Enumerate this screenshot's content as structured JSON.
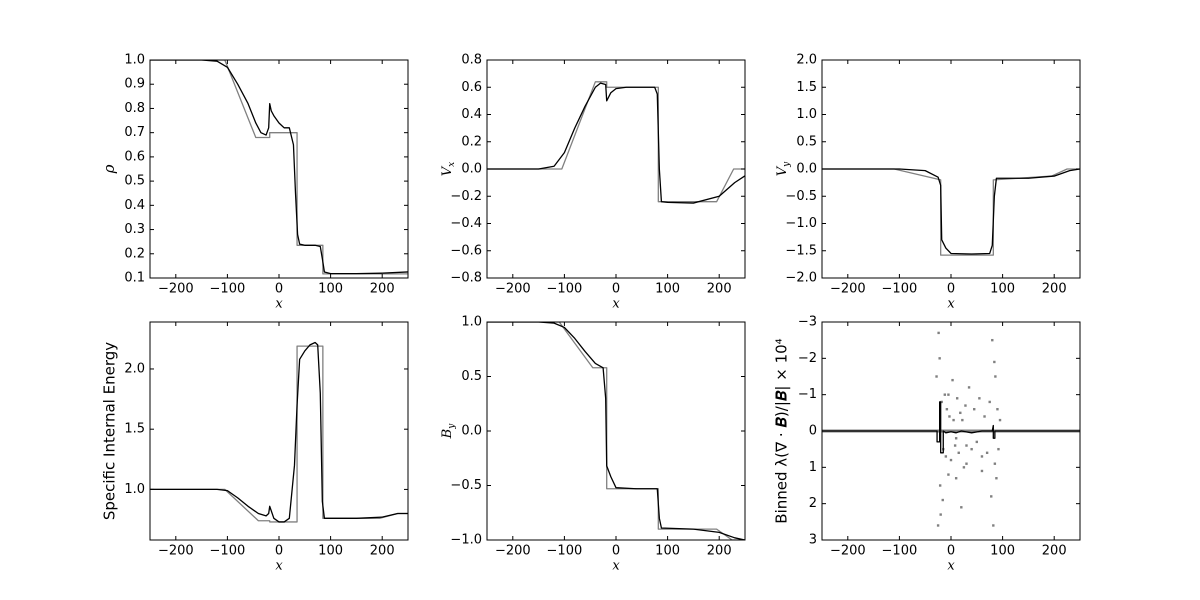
{
  "chart_data": [
    {
      "type": "line",
      "xlabel": "x",
      "ylabel": "ρ",
      "xlim": [
        -250,
        250
      ],
      "xticks": [
        {
          "value": -200,
          "label": "−200"
        },
        {
          "value": -100,
          "label": "−100"
        },
        0,
        100,
        200
      ],
      "ylim": [
        0.1,
        1.0
      ],
      "yticks": [
        0.1,
        0.2,
        0.3,
        0.4,
        0.5,
        0.6,
        0.7,
        0.8,
        0.9,
        {
          "value": 1.0,
          "label": "1.0"
        }
      ],
      "series": [
        {
          "type": "line",
          "color": "#808080",
          "x": [
            -250,
            -105,
            -45,
            -18,
            -18,
            35,
            35,
            85,
            85,
            250
          ],
          "values": [
            1,
            1,
            0.68,
            0.68,
            0.7,
            0.7,
            0.235,
            0.235,
            0.117,
            0.117
          ]
        },
        {
          "type": "line",
          "color": "#000000",
          "x": [
            -250,
            -150,
            -120,
            -100,
            -80,
            -60,
            -45,
            -35,
            -25,
            -20,
            -18,
            -15,
            -10,
            0,
            10,
            20,
            28,
            32,
            36,
            40,
            50,
            70,
            80,
            84,
            88,
            100,
            150,
            200,
            250
          ],
          "values": [
            1.0,
            1.0,
            0.995,
            0.97,
            0.9,
            0.82,
            0.74,
            0.7,
            0.69,
            0.72,
            0.82,
            0.79,
            0.77,
            0.74,
            0.72,
            0.72,
            0.65,
            0.45,
            0.28,
            0.24,
            0.235,
            0.235,
            0.23,
            0.18,
            0.125,
            0.118,
            0.118,
            0.12,
            0.125
          ]
        }
      ]
    },
    {
      "type": "line",
      "xlabel": "x",
      "ylabel": "V",
      "ylabel_sub": "x",
      "xlim": [
        -250,
        250
      ],
      "xticks": [
        {
          "value": -200,
          "label": "−200"
        },
        {
          "value": -100,
          "label": "−100"
        },
        0,
        100,
        200
      ],
      "ylim": [
        -0.8,
        0.8
      ],
      "yticks": [
        {
          "value": -0.8,
          "label": "−0.8"
        },
        {
          "value": -0.6,
          "label": "−0.6"
        },
        {
          "value": -0.4,
          "label": "−0.4"
        },
        {
          "value": -0.2,
          "label": "−0.2"
        },
        {
          "value": 0,
          "label": "0.0"
        },
        0.2,
        0.4,
        0.6,
        0.8
      ],
      "series": [
        {
          "type": "line",
          "color": "#808080",
          "x": [
            -250,
            -105,
            -40,
            -18,
            -18,
            82,
            82,
            195,
            228,
            250
          ],
          "values": [
            0,
            0,
            0.64,
            0.64,
            0.6,
            0.6,
            -0.24,
            -0.24,
            0,
            0
          ]
        },
        {
          "type": "line",
          "color": "#000000",
          "x": [
            -250,
            -150,
            -120,
            -100,
            -80,
            -60,
            -40,
            -30,
            -20,
            -18,
            -10,
            0,
            20,
            40,
            60,
            75,
            80,
            84,
            88,
            100,
            150,
            200,
            230,
            250
          ],
          "values": [
            0,
            0,
            0.02,
            0.12,
            0.3,
            0.46,
            0.6,
            0.63,
            0.62,
            0.5,
            0.56,
            0.59,
            0.6,
            0.6,
            0.6,
            0.6,
            0.55,
            0.0,
            -0.24,
            -0.245,
            -0.25,
            -0.2,
            -0.1,
            -0.05
          ]
        }
      ]
    },
    {
      "type": "line",
      "xlabel": "x",
      "ylabel": "V",
      "ylabel_sub": "y",
      "xlim": [
        -250,
        250
      ],
      "xticks": [
        {
          "value": -200,
          "label": "−200"
        },
        {
          "value": -100,
          "label": "−100"
        },
        0,
        100,
        200
      ],
      "ylim": [
        -2,
        2
      ],
      "yticks": [
        {
          "value": -2,
          "label": "−2.0"
        },
        {
          "value": -1.5,
          "label": "−1.5"
        },
        {
          "value": -1,
          "label": "−1.0"
        },
        {
          "value": -0.5,
          "label": "−0.5"
        },
        {
          "value": 0,
          "label": "0.0"
        },
        0.5,
        {
          "value": 1,
          "label": "1.0"
        },
        1.5,
        {
          "value": 2,
          "label": "2.0"
        }
      ],
      "series": [
        {
          "type": "line",
          "color": "#808080",
          "x": [
            -250,
            -110,
            -20,
            -20,
            82,
            82,
            195,
            225,
            250
          ],
          "values": [
            0,
            0,
            -0.2,
            -1.58,
            -1.58,
            -0.2,
            -0.13,
            0,
            0
          ]
        },
        {
          "type": "line",
          "color": "#000000",
          "x": [
            -250,
            -100,
            -50,
            -25,
            -20,
            -18,
            -10,
            0,
            40,
            75,
            80,
            84,
            88,
            150,
            200,
            230,
            250
          ],
          "values": [
            0,
            0,
            -0.03,
            -0.15,
            -0.3,
            -1.3,
            -1.45,
            -1.55,
            -1.56,
            -1.55,
            -1.4,
            -0.5,
            -0.17,
            -0.17,
            -0.13,
            -0.03,
            0
          ]
        }
      ]
    },
    {
      "type": "line",
      "xlabel": "x",
      "ylabel": "Specific Internal Energy",
      "xlim": [
        -250,
        250
      ],
      "xticks": [
        {
          "value": -200,
          "label": "−200"
        },
        {
          "value": -100,
          "label": "−100"
        },
        0,
        100,
        200
      ],
      "ylim": [
        0.58,
        2.39
      ],
      "yticks": [
        {
          "value": 1,
          "label": "1.0"
        },
        1.5,
        {
          "value": 2,
          "label": "2.0"
        }
      ],
      "series": [
        {
          "type": "line",
          "color": "#808080",
          "x": [
            -250,
            -105,
            -40,
            -18,
            -18,
            35,
            35,
            85,
            85,
            195,
            230,
            250
          ],
          "values": [
            1,
            1,
            0.74,
            0.74,
            0.73,
            0.73,
            2.19,
            2.19,
            0.76,
            0.76,
            0.8,
            0.8
          ]
        },
        {
          "type": "line",
          "color": "#000000",
          "x": [
            -250,
            -120,
            -100,
            -80,
            -60,
            -40,
            -25,
            -20,
            -18,
            -10,
            0,
            10,
            20,
            30,
            35,
            40,
            50,
            60,
            70,
            75,
            80,
            84,
            88,
            100,
            150,
            200,
            230,
            250
          ],
          "values": [
            1.0,
            1.0,
            0.99,
            0.93,
            0.86,
            0.8,
            0.78,
            0.8,
            0.86,
            0.76,
            0.73,
            0.73,
            0.76,
            1.2,
            1.7,
            2.08,
            2.15,
            2.2,
            2.22,
            2.2,
            1.8,
            0.9,
            0.76,
            0.76,
            0.76,
            0.77,
            0.8,
            0.8
          ]
        }
      ]
    },
    {
      "type": "line",
      "xlabel": "x",
      "ylabel": "B",
      "ylabel_sub": "y",
      "xlim": [
        -250,
        250
      ],
      "xticks": [
        {
          "value": -200,
          "label": "−200"
        },
        {
          "value": -100,
          "label": "−100"
        },
        0,
        100,
        200
      ],
      "ylim": [
        -1,
        1
      ],
      "yticks": [
        {
          "value": -1,
          "label": "−1.0"
        },
        {
          "value": -0.5,
          "label": "−0.5"
        },
        {
          "value": 0,
          "label": "0.0"
        },
        0.5,
        {
          "value": 1,
          "label": "1.0"
        }
      ],
      "series": [
        {
          "type": "line",
          "color": "#808080",
          "x": [
            -250,
            -110,
            -45,
            -18,
            -18,
            82,
            82,
            195,
            225,
            250
          ],
          "values": [
            1,
            1,
            0.58,
            0.58,
            -0.53,
            -0.53,
            -0.9,
            -0.9,
            -1,
            -1
          ]
        },
        {
          "type": "line",
          "color": "#000000",
          "x": [
            -250,
            -150,
            -120,
            -100,
            -80,
            -60,
            -40,
            -25,
            -20,
            -18,
            -10,
            0,
            40,
            80,
            84,
            88,
            150,
            200,
            230,
            250
          ],
          "values": [
            1,
            1,
            0.99,
            0.95,
            0.85,
            0.73,
            0.62,
            0.58,
            0.3,
            -0.32,
            -0.42,
            -0.52,
            -0.53,
            -0.53,
            -0.8,
            -0.89,
            -0.9,
            -0.93,
            -0.98,
            -1.0
          ]
        }
      ]
    },
    {
      "type": "line",
      "xlabel": "x",
      "ylabel": "Binned λ(∇ · 𝑩)/|𝑩| × 10⁴",
      "xlim": [
        -250,
        250
      ],
      "xticks": [
        {
          "value": -200,
          "label": "−200"
        },
        {
          "value": -100,
          "label": "−100"
        },
        0,
        100,
        200
      ],
      "ylim": [
        3,
        -3
      ],
      "yticks": [
        {
          "value": -3,
          "label": "−3"
        },
        {
          "value": -2,
          "label": "−2"
        },
        {
          "value": -1,
          "label": "−1"
        },
        0,
        1,
        2,
        3
      ],
      "series": [
        {
          "type": "scatter",
          "color": "#808080",
          "x": [
            -25,
            -24,
            -22,
            -21,
            -20,
            -18,
            -15,
            -12,
            -10,
            -8,
            -5,
            -3,
            0,
            3,
            5,
            8,
            10,
            12,
            15,
            18,
            20,
            22,
            25,
            28,
            30,
            35,
            40,
            45,
            50,
            55,
            60,
            65,
            70,
            75,
            78,
            80,
            82,
            84,
            85,
            86,
            88,
            90,
            92,
            95,
            -28,
            -16,
            -5,
            10,
            30,
            60
          ],
          "values": [
            2.6,
            -2.7,
            -2.0,
            1.5,
            2.3,
            -0.8,
            0.5,
            -1.0,
            0.7,
            -0.6,
            1.2,
            -0.4,
            0.8,
            -1.4,
            -0.3,
            0.4,
            1.3,
            -0.9,
            0.6,
            -0.5,
            2.1,
            -0.3,
            1.0,
            -0.7,
            0.9,
            -1.2,
            0.5,
            -0.6,
            0.3,
            -0.9,
            1.1,
            -0.4,
            0.6,
            -0.8,
            1.8,
            -2.5,
            2.6,
            -1.9,
            0.9,
            -1.5,
            1.3,
            -0.6,
            0.5,
            -0.3,
            -1.5,
            1.9,
            -1.0,
            0.2,
            0.4,
            0.7
          ]
        },
        {
          "type": "line",
          "color": "#808080",
          "width": 3,
          "x": [
            -250,
            250
          ],
          "values": [
            0,
            0
          ]
        },
        {
          "type": "line",
          "color": "#000000",
          "x": [
            -250,
            -27,
            -27,
            -22,
            -22,
            -20,
            -20,
            -15,
            -15,
            -10,
            0,
            10,
            20,
            40,
            60,
            80,
            82,
            82,
            85,
            85,
            90,
            250
          ],
          "values": [
            0,
            0,
            0.3,
            0.3,
            -0.8,
            -0.8,
            0.6,
            0.6,
            0,
            0.05,
            0.02,
            0.05,
            0,
            0.05,
            0,
            0,
            -0.15,
            0.2,
            0.2,
            0,
            0,
            0
          ]
        }
      ]
    }
  ]
}
